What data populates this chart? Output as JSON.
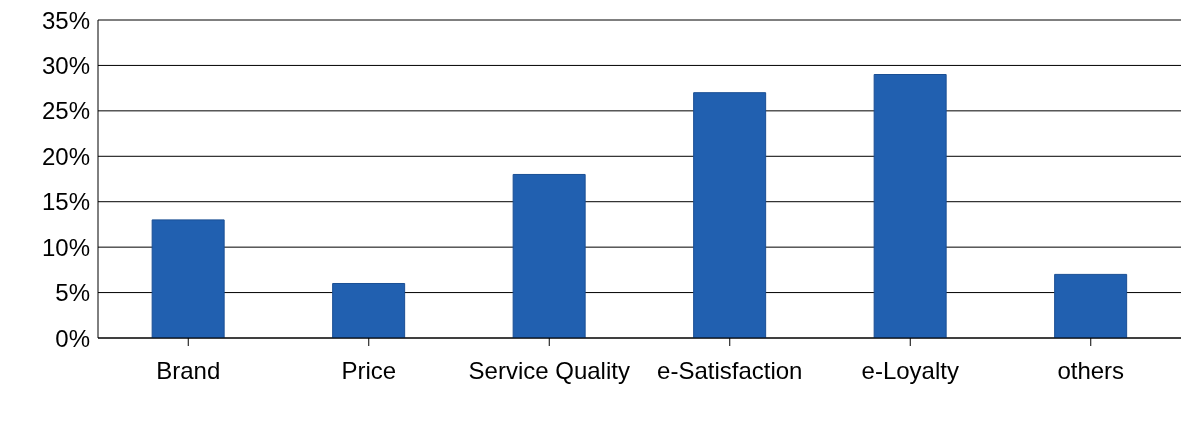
{
  "chart_data": {
    "type": "bar",
    "categories": [
      "Brand",
      "Price",
      "Service Quality",
      "e-Satisfaction",
      "e-Loyalty",
      "others"
    ],
    "values": [
      13,
      6,
      18,
      27,
      29,
      7
    ],
    "color": "#2160b0",
    "ylim": [
      0,
      35
    ],
    "yticks": [
      {
        "value": 0,
        "label": "0%"
      },
      {
        "value": 5,
        "label": "5%"
      },
      {
        "value": 10,
        "label": "10%"
      },
      {
        "value": 15,
        "label": "15%"
      },
      {
        "value": 20,
        "label": "20%"
      },
      {
        "value": 25,
        "label": "25%"
      },
      {
        "value": 30,
        "label": "30%"
      },
      {
        "value": 35,
        "label": "35%"
      }
    ],
    "grid": "y",
    "legend": false
  }
}
